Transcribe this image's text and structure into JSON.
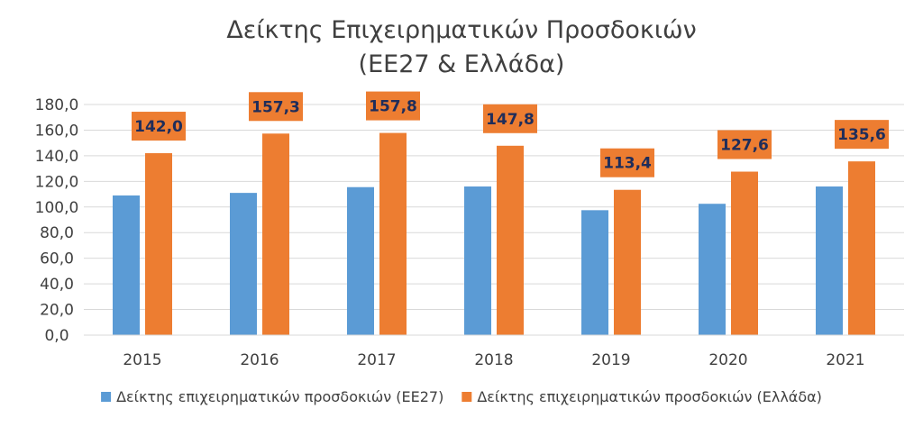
{
  "chart_data": {
    "type": "bar",
    "title": "Δείκτης Επιχειρηματικών Προσδοκιών",
    "subtitle": "(ΕΕ27 & Ελλάδα)",
    "xlabel": "",
    "ylabel": "",
    "categories": [
      "2015",
      "2016",
      "2017",
      "2018",
      "2019",
      "2020",
      "2021"
    ],
    "ylim": [
      0,
      180
    ],
    "y_ticks": [
      "0,0",
      "20,0",
      "40,0",
      "60,0",
      "80,0",
      "100,0",
      "120,0",
      "140,0",
      "160,0",
      "180,0"
    ],
    "grid": true,
    "legend_position": "bottom",
    "series": [
      {
        "name": "Δείκτης επιχειρηματικών προσδοκιών (ΕΕ27)",
        "color": "#5b9bd5",
        "values": [
          109.0,
          111.0,
          115.5,
          116.0,
          97.5,
          102.5,
          116.0
        ],
        "data_labels": []
      },
      {
        "name": "Δείκτης επιχειρηματικών προσδοκιών (Ελλάδα)",
        "color": "#ed7d31",
        "values": [
          142.0,
          157.3,
          157.8,
          147.8,
          113.4,
          127.6,
          135.6
        ],
        "data_labels": [
          "142,0",
          "157,3",
          "157,8",
          "147,8",
          "113,4",
          "127,6",
          "135,6"
        ],
        "label_bg": "#ed7d31"
      }
    ],
    "gridline_color": "#d9d9d9",
    "axis_color": "#d9d9d9"
  }
}
